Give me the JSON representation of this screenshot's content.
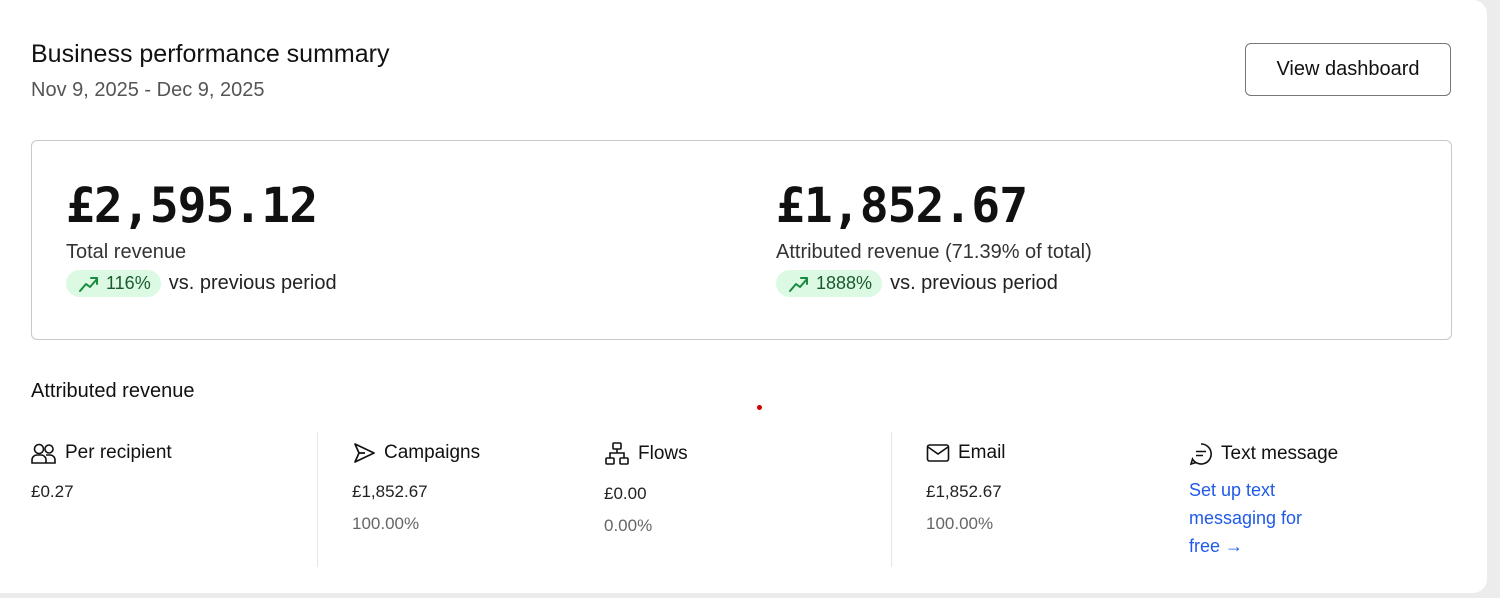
{
  "header": {
    "title": "Business performance summary",
    "date_range": "Nov 9, 2025 - Dec 9, 2025",
    "view_dashboard_label": "View dashboard"
  },
  "stats": [
    {
      "value": "£2,595.12",
      "label": "Total revenue",
      "change": "116%",
      "comparison": "vs. previous period",
      "trend": "up"
    },
    {
      "value": "£1,852.67",
      "label": "Attributed revenue (71.39% of total)",
      "change": "1888%",
      "comparison": "vs. previous period",
      "trend": "up"
    }
  ],
  "attributed": {
    "title": "Attributed revenue",
    "per_recipient": {
      "label": "Per recipient",
      "value": "£0.27",
      "icon": "people-icon"
    },
    "campaigns": {
      "label": "Campaigns",
      "value": "£1,852.67",
      "percent": "100.00%",
      "icon": "send-icon"
    },
    "flows": {
      "label": "Flows",
      "value": "£0.00",
      "percent": "0.00%",
      "icon": "flow-icon"
    },
    "email": {
      "label": "Email",
      "value": "£1,852.67",
      "percent": "100.00%",
      "icon": "mail-icon"
    },
    "text_message": {
      "label": "Text message",
      "link": "Set up text messaging for free →",
      "icon": "chat-icon"
    }
  },
  "colors": {
    "positive_bg": "#dcf9e3",
    "positive_fg": "#1a8a3f",
    "link": "#1f5ae8"
  }
}
